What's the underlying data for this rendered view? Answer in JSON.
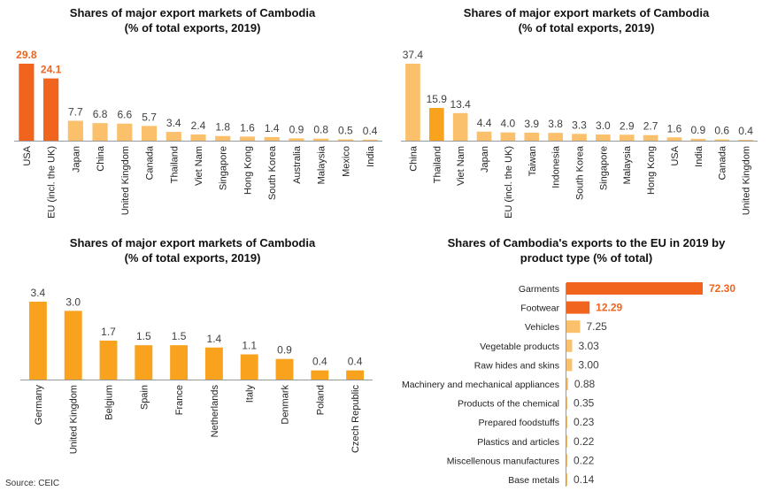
{
  "colors": {
    "dark": "#F0641E",
    "mid": "#F8A21E",
    "light": "#FAC06C",
    "axis": "#999999",
    "label_text": "#404040"
  },
  "source": "Source: CEIC",
  "chart_data": [
    {
      "type": "bar",
      "title_lines": [
        "Shares of major export markets of Cambodia",
        "(% of total exports, 2019)"
      ],
      "categories": [
        "USA",
        "EU (incl. the UK)",
        "Japan",
        "China",
        "United Kingdom",
        "Canada",
        "Thailand",
        "Viet Nam",
        "Singapore",
        "Hong Kong",
        "South Korea",
        "Australia",
        "Malaysia",
        "Mexico",
        "India"
      ],
      "values": [
        29.8,
        24.1,
        7.7,
        6.8,
        6.6,
        5.7,
        3.4,
        2.4,
        1.8,
        1.6,
        1.4,
        0.9,
        0.8,
        0.5,
        0.4
      ],
      "value_labels": [
        "29.8",
        "24.1",
        "7.7",
        "6.8",
        "6.6",
        "5.7",
        "3.4",
        "2.4",
        "1.8",
        "1.6",
        "1.4",
        "0.9",
        "0.8",
        "0.5",
        "0.4"
      ],
      "bar_colors": [
        "dark",
        "dark",
        "light",
        "light",
        "light",
        "light",
        "light",
        "light",
        "light",
        "light",
        "light",
        "light",
        "light",
        "light",
        "light"
      ],
      "highlight_labels": [
        0,
        1
      ]
    },
    {
      "type": "bar",
      "title_lines": [
        "Shares of major export markets of Cambodia",
        "(% of total exports, 2019)"
      ],
      "categories": [
        "China",
        "Thailand",
        "Viet Nam",
        "Japan",
        "EU (incl. the UK)",
        "Taiwan",
        "Indonesia",
        "South Korea",
        "Singapore",
        "Malaysia",
        "Hong Kong",
        "USA",
        "India",
        "Canada",
        "United Kingdom"
      ],
      "values": [
        37.4,
        15.9,
        13.4,
        4.4,
        4.0,
        3.9,
        3.8,
        3.3,
        3.0,
        2.9,
        2.7,
        1.6,
        0.9,
        0.6,
        0.4
      ],
      "value_labels": [
        "37.4",
        "15.9",
        "13.4",
        "4.4",
        "4.0",
        "3.9",
        "3.8",
        "3.3",
        "3.0",
        "2.9",
        "2.7",
        "1.6",
        "0.9",
        "0.6",
        "0.4"
      ],
      "bar_colors": [
        "light",
        "mid",
        "light",
        "light",
        "light",
        "light",
        "light",
        "light",
        "light",
        "light",
        "light",
        "light",
        "light",
        "light",
        "light"
      ],
      "highlight_labels": []
    },
    {
      "type": "bar",
      "title_lines": [
        "Shares of major export markets of Cambodia",
        "(% of total exports, 2019)"
      ],
      "categories": [
        "Germany",
        "United Kingdom",
        "Belgium",
        "Spain",
        "France",
        "Netherlands",
        "Italy",
        "Denmark",
        "Poland",
        "Czech Republic"
      ],
      "values": [
        3.4,
        3.0,
        1.7,
        1.5,
        1.5,
        1.4,
        1.1,
        0.9,
        0.4,
        0.4
      ],
      "value_labels": [
        "3.4",
        "3.0",
        "1.7",
        "1.5",
        "1.5",
        "1.4",
        "1.1",
        "0.9",
        "0.4",
        "0.4"
      ],
      "bar_colors": [
        "mid",
        "mid",
        "mid",
        "mid",
        "mid",
        "mid",
        "mid",
        "mid",
        "mid",
        "mid"
      ],
      "highlight_labels": []
    },
    {
      "type": "bar",
      "orientation": "horizontal",
      "title_lines": [
        "Shares of Cambodia's exports to the EU in 2019 by",
        "product type (% of total)"
      ],
      "categories": [
        "Garments",
        "Footwear",
        "Vehicles",
        "Vegetable products",
        "Raw hides and skins",
        "Machinery and mechanical appliances",
        "Products of the chemical",
        "Prepared foodstuffs",
        "Plastics and articles",
        "Miscellenous manufactures",
        "Base metals"
      ],
      "values": [
        72.3,
        12.29,
        7.25,
        3.03,
        3.0,
        0.88,
        0.35,
        0.23,
        0.22,
        0.22,
        0.14
      ],
      "value_labels": [
        "72.30",
        "12.29",
        "7.25",
        "3.03",
        "3.00",
        "0.88",
        "0.35",
        "0.23",
        "0.22",
        "0.22",
        "0.14"
      ],
      "bar_colors": [
        "dark",
        "dark",
        "light",
        "light",
        "light",
        "light",
        "light",
        "light",
        "light",
        "light",
        "light"
      ],
      "highlight_labels": [
        0,
        1
      ]
    }
  ]
}
